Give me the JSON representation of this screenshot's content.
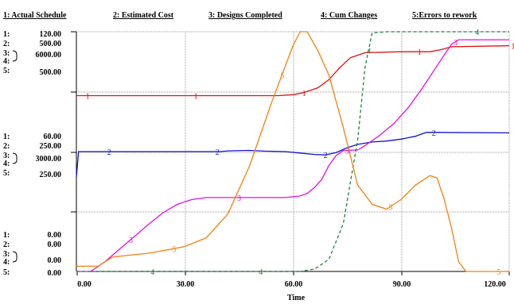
{
  "chart_data": {
    "type": "line",
    "title": "",
    "xlabel": "Time",
    "xlim": [
      0,
      120
    ],
    "x_ticks": [
      "0.00",
      "30.00",
      "60.00",
      "90.00",
      "120.00"
    ],
    "legend": [
      {
        "label": "1: Actual Schedule"
      },
      {
        "label": "2: Estimated Cost"
      },
      {
        "label": "3: Designs Completed"
      },
      {
        "label": "4: Cum Changes"
      },
      {
        "label": "5:Errors to rework"
      }
    ],
    "y_scale_blocks": [
      [
        {
          "tag": "1:",
          "value": "120.00"
        },
        {
          "tag": "2:",
          "value": "500.00"
        },
        {
          "tag": "3:",
          "value": "6000.00"
        },
        {
          "tag": "4:",
          "value": ""
        },
        {
          "tag": "5:",
          "value": "500.00"
        }
      ],
      [
        {
          "tag": "1:",
          "value": "60.00"
        },
        {
          "tag": "2:",
          "value": "250.00"
        },
        {
          "tag": "3:",
          "value": "3000.00"
        },
        {
          "tag": "4:",
          "value": ""
        },
        {
          "tag": "5:",
          "value": "250.00"
        }
      ],
      [
        {
          "tag": "1:",
          "value": "0.00"
        },
        {
          "tag": "2:",
          "value": "0.00"
        },
        {
          "tag": "3:",
          "value": "0.00"
        },
        {
          "tag": "4:",
          "value": ""
        },
        {
          "tag": "5:",
          "value": "0.00"
        }
      ]
    ],
    "ylim_by_series": {
      "1": [
        0,
        120
      ],
      "2": [
        0,
        500
      ],
      "3": [
        0,
        6000
      ],
      "4": [
        0,
        1
      ],
      "5": [
        0,
        500
      ]
    },
    "series": [
      {
        "id": "1",
        "color": "#e01010",
        "dashed": false,
        "points": [
          [
            0,
            88
          ],
          [
            5,
            88
          ],
          [
            20,
            88
          ],
          [
            50,
            88
          ],
          [
            56,
            88
          ],
          [
            60,
            88.5
          ],
          [
            63,
            89.5
          ],
          [
            67,
            92
          ],
          [
            70,
            96
          ],
          [
            73,
            102
          ],
          [
            76,
            107
          ],
          [
            80,
            109.5
          ],
          [
            90,
            110
          ],
          [
            98,
            110
          ],
          [
            101,
            111
          ],
          [
            104,
            112.5
          ],
          [
            120,
            113
          ],
          [
            124,
            113
          ]
        ],
        "marker_x": [
          3,
          33,
          63,
          95,
          121
        ]
      },
      {
        "id": "2",
        "color": "#1010d0",
        "dashed": false,
        "points": [
          [
            0,
            196
          ],
          [
            0.6,
            250
          ],
          [
            20,
            250
          ],
          [
            40,
            250
          ],
          [
            42,
            251.5
          ],
          [
            48,
            252.5
          ],
          [
            52,
            251
          ],
          [
            58,
            250
          ],
          [
            62,
            247
          ],
          [
            66,
            244
          ],
          [
            69,
            243
          ],
          [
            72,
            248
          ],
          [
            75,
            258
          ],
          [
            78,
            265
          ],
          [
            82,
            270
          ],
          [
            86,
            272
          ],
          [
            90,
            276
          ],
          [
            94,
            282
          ],
          [
            97,
            290
          ],
          [
            100,
            290
          ],
          [
            124,
            289
          ]
        ],
        "marker_x": [
          9,
          39,
          69,
          99
        ]
      },
      {
        "id": "3",
        "color": "#e010e0",
        "dashed": false,
        "points": [
          [
            0,
            0
          ],
          [
            4,
            0
          ],
          [
            8,
            250
          ],
          [
            12,
            560
          ],
          [
            16,
            870
          ],
          [
            20,
            1180
          ],
          [
            24,
            1470
          ],
          [
            28,
            1680
          ],
          [
            32,
            1800
          ],
          [
            36,
            1850
          ],
          [
            40,
            1850
          ],
          [
            45,
            1850
          ],
          [
            50,
            1850
          ],
          [
            58,
            1850
          ],
          [
            62,
            1890
          ],
          [
            64,
            1950
          ],
          [
            66,
            2100
          ],
          [
            68,
            2300
          ],
          [
            70,
            2650
          ],
          [
            72,
            2900
          ],
          [
            74,
            3030
          ],
          [
            78,
            3040
          ],
          [
            80,
            3150
          ],
          [
            84,
            3400
          ],
          [
            88,
            3700
          ],
          [
            92,
            4100
          ],
          [
            96,
            4600
          ],
          [
            100,
            5150
          ],
          [
            104,
            5690
          ],
          [
            106,
            5800
          ],
          [
            124,
            5800
          ]
        ],
        "marker_x": [
          15,
          45,
          75,
          105
        ]
      },
      {
        "id": "4",
        "color": "#208040",
        "dashed": true,
        "points": [
          [
            0,
            0
          ],
          [
            62,
            0
          ],
          [
            66,
            0.01
          ],
          [
            70,
            0.05
          ],
          [
            74,
            0.2
          ],
          [
            78,
            0.55
          ],
          [
            80,
            0.85
          ],
          [
            82,
            0.995
          ],
          [
            86,
            1
          ],
          [
            124,
            1
          ]
        ],
        "marker_x": [
          21,
          51,
          81,
          111
        ]
      },
      {
        "id": "5",
        "color": "#f08010",
        "dashed": false,
        "points": [
          [
            0,
            11
          ],
          [
            6,
            11
          ],
          [
            10,
            30
          ],
          [
            16,
            35
          ],
          [
            20,
            38
          ],
          [
            26,
            46
          ],
          [
            30,
            52
          ],
          [
            36,
            70
          ],
          [
            42,
            120
          ],
          [
            48,
            220
          ],
          [
            54,
            350
          ],
          [
            58,
            430
          ],
          [
            60,
            470
          ],
          [
            62,
            500
          ],
          [
            64,
            500
          ],
          [
            67,
            460
          ],
          [
            70,
            410
          ],
          [
            74,
            300
          ],
          [
            78,
            180
          ],
          [
            82,
            140
          ],
          [
            86,
            130
          ],
          [
            90,
            150
          ],
          [
            94,
            180
          ],
          [
            98,
            200
          ],
          [
            100,
            195
          ],
          [
            102,
            150
          ],
          [
            104,
            90
          ],
          [
            106,
            20
          ],
          [
            108,
            0
          ],
          [
            124,
            0
          ]
        ],
        "marker_x": [
          27,
          57,
          87,
          117
        ]
      }
    ]
  }
}
